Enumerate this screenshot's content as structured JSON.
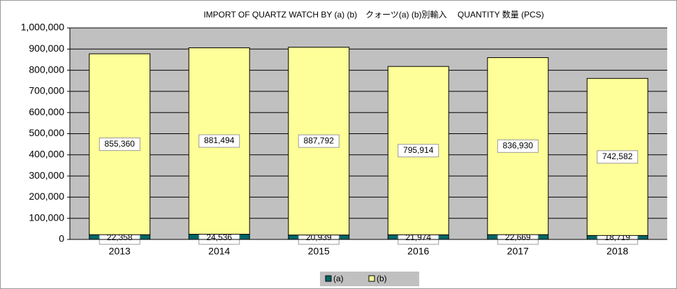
{
  "chart_data": {
    "type": "stacked_bar",
    "title": "IMPORT OF QUARTZ WATCH BY (a) (b)　クォーツ(a) (b)別輸入　 QUANTITY 数量 (PCS)",
    "categories": [
      "2013",
      "2014",
      "2015",
      "2016",
      "2017",
      "2018"
    ],
    "series": [
      {
        "name": "(a)",
        "color": "#006666",
        "values": [
          22358,
          24536,
          20939,
          21974,
          22669,
          18719
        ],
        "value_labels": [
          "22,358",
          "24,536",
          "20,939",
          "21,974",
          "22,669",
          "18,719"
        ]
      },
      {
        "name": "(b)",
        "color": "#ffff99",
        "values": [
          855360,
          881494,
          887792,
          795914,
          836930,
          742582
        ],
        "value_labels": [
          "855,360",
          "881,494",
          "887,792",
          "795,914",
          "836,930",
          "742,582"
        ]
      }
    ],
    "ylim": [
      0,
      1000000
    ],
    "yticks": [
      0,
      {
        "value": 100000,
        "label": "100,000"
      },
      {
        "value": 200000,
        "label": "200,000"
      },
      {
        "value": 300000,
        "label": "300,000"
      },
      {
        "value": 400000,
        "label": "400,000"
      },
      {
        "value": 500000,
        "label": "500,000"
      },
      {
        "value": 600000,
        "label": "600,000"
      },
      {
        "value": 700000,
        "label": "700,000"
      },
      {
        "value": 800000,
        "label": "800,000"
      },
      {
        "value": 900000,
        "label": "900,000"
      },
      {
        "value": 1000000,
        "label": "1,000,000"
      }
    ],
    "grid": true,
    "legend": "bottom"
  }
}
